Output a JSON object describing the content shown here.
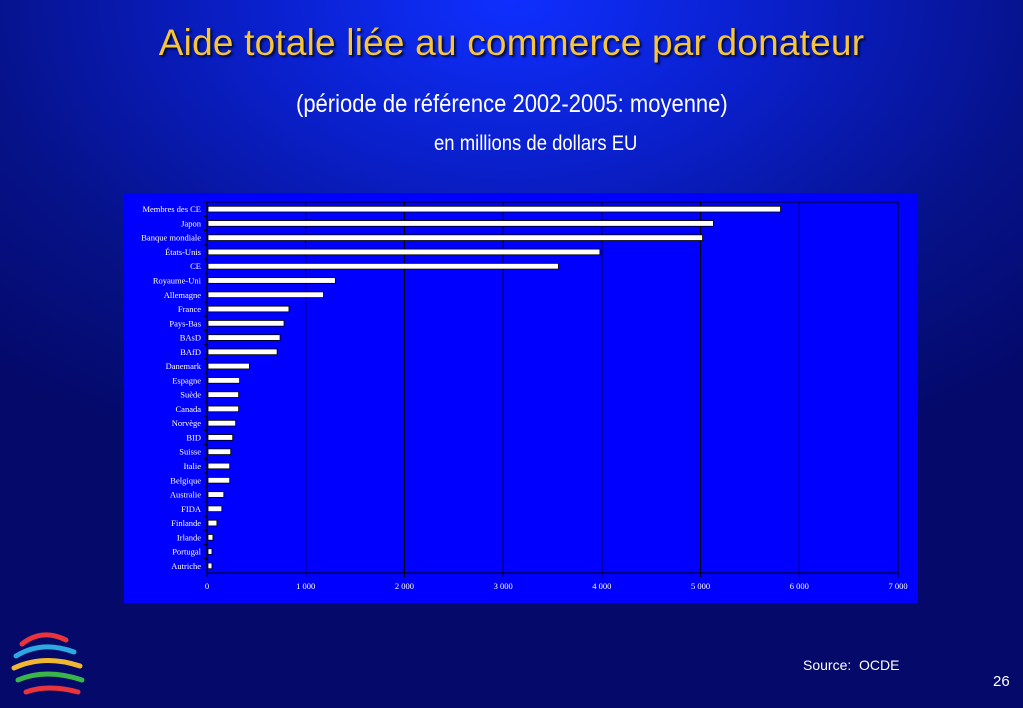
{
  "slide": {
    "title": "Aide totale liée au commerce par donateur",
    "subtitle": "(période de référence 2002-2005:  moyenne)",
    "units": "en millions de dollars EU",
    "source": "Source:  OCDE",
    "page_number": "26",
    "title_color": "#f7c53a",
    "logo": "wto-logo-icon"
  },
  "chart_data": {
    "type": "bar",
    "orientation": "horizontal",
    "categories": [
      "Membres des CE",
      "Japon",
      "Banque mondiale",
      "États-Unis",
      "CE",
      "Royaume-Uni",
      "Allemagne",
      "France",
      "Pays-Bas",
      "BAsD",
      "BAfD",
      "Danemark",
      "Espagne",
      "Suède",
      "Canada",
      "Norvège",
      "BID",
      "Suisse",
      "Italie",
      "Belgique",
      "Australie",
      "FIDA",
      "Finlande",
      "Irlande",
      "Portugal",
      "Autriche"
    ],
    "values": [
      5800,
      5120,
      5010,
      3970,
      3550,
      1290,
      1170,
      820,
      770,
      730,
      700,
      420,
      320,
      310,
      310,
      280,
      250,
      230,
      220,
      220,
      160,
      140,
      90,
      50,
      40,
      40
    ],
    "xlim": [
      0,
      7000
    ],
    "xticks": [
      0,
      1000,
      2000,
      3000,
      4000,
      5000,
      6000,
      7000
    ],
    "xtick_labels": [
      "0",
      "1 000",
      "2 000",
      "3 000",
      "4 000",
      "5 000",
      "6 000",
      "7 000"
    ],
    "grid": "vertical",
    "bar_color": "#ffffff",
    "background_color": "#0000ff"
  }
}
